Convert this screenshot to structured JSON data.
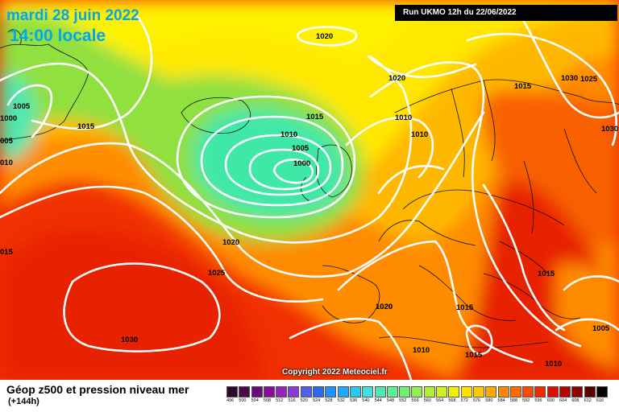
{
  "header": {
    "date_title": "mardi 28 juin 2022",
    "time_title": "14:00 locale",
    "run_info": "Run UKMO 12h du 22/06/2022"
  },
  "copyright": "Copyright 2022 Meteociel.fr",
  "footer": {
    "title": "Géop z500 et pression niveau mer",
    "subtitle": "(+144h)"
  },
  "scale": {
    "ticks": [
      "496",
      "500",
      "504",
      "508",
      "512",
      "516",
      "520",
      "524",
      "528",
      "532",
      "536",
      "540",
      "544",
      "548",
      "552",
      "556",
      "560",
      "564",
      "568",
      "572",
      "576",
      "580",
      "584",
      "588",
      "592",
      "596",
      "600",
      "604",
      "608",
      "612",
      "616"
    ],
    "colors": [
      "#2b0a2b",
      "#4a0a4a",
      "#6a0a7a",
      "#8a0aa0",
      "#9a20c0",
      "#8a3ad8",
      "#5060e8",
      "#2a6af0",
      "#1e90ff",
      "#1ea8f8",
      "#28c8f0",
      "#40e0e0",
      "#50e8b0",
      "#60f090",
      "#70f070",
      "#90f050",
      "#b0f030",
      "#d0f020",
      "#f0f000",
      "#ffe000",
      "#ffc800",
      "#ffa800",
      "#ff8800",
      "#ff6a00",
      "#f84a00",
      "#ee2a00",
      "#d81000",
      "#b40000",
      "#8c0000",
      "#5a0000",
      "#000000"
    ]
  },
  "isobars": [
    "1020",
    "1020",
    "1025",
    "1030",
    "1030",
    "1005",
    "1000",
    "1015",
    "005",
    "010",
    "1015",
    "1010",
    "1005",
    "1000",
    "1010",
    "1010",
    "1020",
    "1025",
    "015",
    "1020",
    "1015",
    "1015",
    "1030",
    "1020",
    "1015",
    "1010",
    "1015",
    "1005",
    "1010"
  ],
  "palette": {
    "yellow": "#ffe800",
    "light_orange": "#ffb800",
    "orange": "#ff8c00",
    "dark_orange": "#f86000",
    "red": "#f03000",
    "green": "#90e040",
    "cyan_green": "#40e8a8"
  }
}
